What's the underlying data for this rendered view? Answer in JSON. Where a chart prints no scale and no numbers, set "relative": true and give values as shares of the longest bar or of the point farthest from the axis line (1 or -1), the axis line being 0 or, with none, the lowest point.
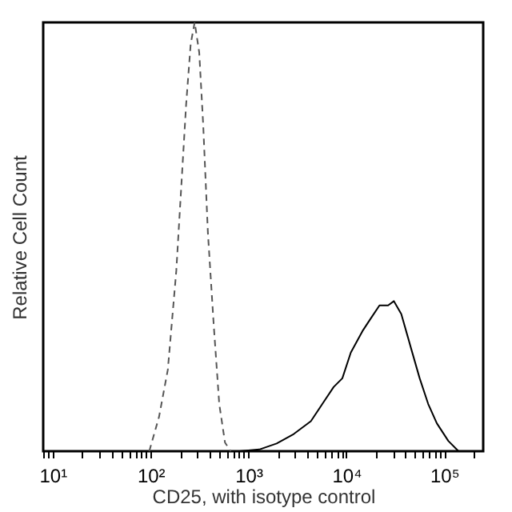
{
  "chart_data": {
    "type": "line",
    "relative": true,
    "xlabel": "CD25, with isotype control",
    "ylabel": "Relative Cell Count",
    "log": "x",
    "grid": false,
    "legend": false,
    "marker": "none",
    "xlim": [
      8,
      250000
    ],
    "xticks": [
      {
        "value": 8,
        "label": null
      },
      {
        "value": 9,
        "label": null
      },
      {
        "value": 10,
        "label": "10¹"
      },
      {
        "value": 20,
        "label": null
      },
      {
        "value": 30,
        "label": null
      },
      {
        "value": 40,
        "label": null
      },
      {
        "value": 50,
        "label": null
      },
      {
        "value": 60,
        "label": null
      },
      {
        "value": 70,
        "label": null
      },
      {
        "value": 80,
        "label": null
      },
      {
        "value": 90,
        "label": null
      },
      {
        "value": 100,
        "label": "10²"
      },
      {
        "value": 200,
        "label": null
      },
      {
        "value": 300,
        "label": null
      },
      {
        "value": 400,
        "label": null
      },
      {
        "value": 500,
        "label": null
      },
      {
        "value": 600,
        "label": null
      },
      {
        "value": 700,
        "label": null
      },
      {
        "value": 800,
        "label": null
      },
      {
        "value": 900,
        "label": null
      },
      {
        "value": 1000,
        "label": "10³"
      },
      {
        "value": 2000,
        "label": null
      },
      {
        "value": 3000,
        "label": null
      },
      {
        "value": 4000,
        "label": null
      },
      {
        "value": 5000,
        "label": null
      },
      {
        "value": 6000,
        "label": null
      },
      {
        "value": 7000,
        "label": null
      },
      {
        "value": 8000,
        "label": null
      },
      {
        "value": 9000,
        "label": null
      },
      {
        "value": 10000,
        "label": "10⁴"
      },
      {
        "value": 20000,
        "label": null
      },
      {
        "value": 30000,
        "label": null
      },
      {
        "value": 40000,
        "label": null
      },
      {
        "value": 50000,
        "label": null
      },
      {
        "value": 60000,
        "label": null
      },
      {
        "value": 70000,
        "label": null
      },
      {
        "value": 80000,
        "label": null
      },
      {
        "value": 90000,
        "label": null
      },
      {
        "value": 100000,
        "label": "10⁵"
      },
      {
        "value": 200000,
        "label": null
      }
    ],
    "series": [
      {
        "color": "#555555",
        "line_style": "dashed",
        "x": [
          97,
          122,
          150,
          183,
          210,
          231,
          257,
          282,
          314,
          345,
          385,
          440,
          503,
          576,
          659
        ],
        "values": [
          0,
          0.08,
          0.19,
          0.42,
          0.65,
          0.81,
          0.95,
          1,
          0.93,
          0.76,
          0.51,
          0.3,
          0.11,
          0.02,
          0
        ]
      },
      {
        "color": "#000000",
        "line_style": "solid",
        "x": [
          806,
          1290,
          1940,
          2900,
          4340,
          5680,
          7430,
          9100,
          11100,
          14600,
          17800,
          21800,
          26700,
          30600,
          36400,
          45800,
          56100,
          68600,
          84000,
          110000,
          140000
        ],
        "values": [
          0,
          0.004,
          0.018,
          0.04,
          0.07,
          0.11,
          0.15,
          0.17,
          0.23,
          0.28,
          0.31,
          0.34,
          0.34,
          0.35,
          0.32,
          0.24,
          0.17,
          0.11,
          0.065,
          0.024,
          0
        ]
      }
    ]
  }
}
